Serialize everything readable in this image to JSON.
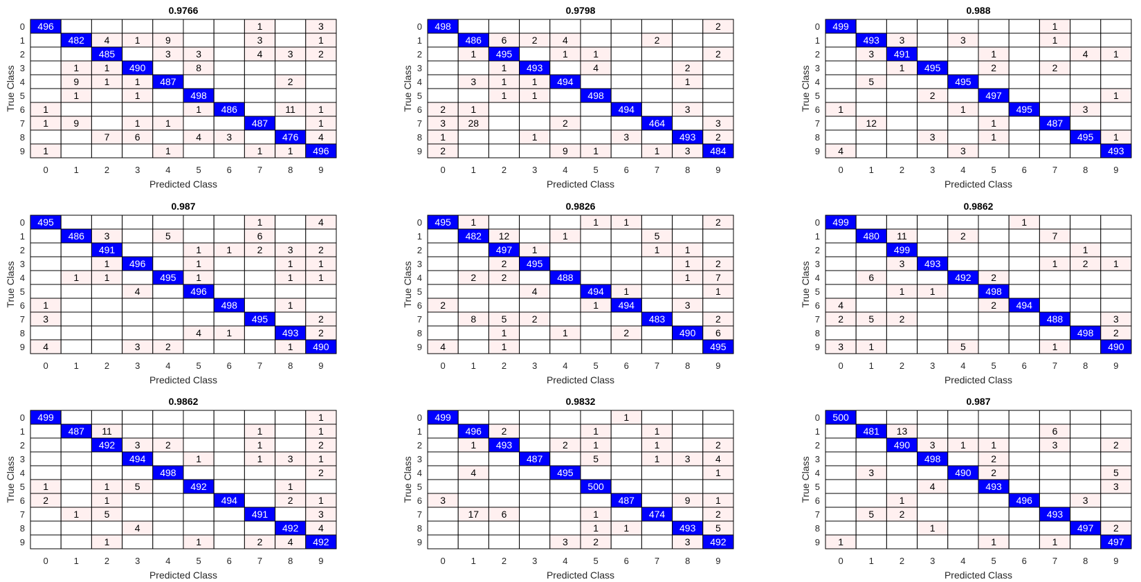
{
  "figure": {
    "background": "#ffffff"
  },
  "style": {
    "diag_color": "#0000ff",
    "offdiag_color": "#fff0f0",
    "grid_color": "#000000",
    "diag_text_color": "#ffffff",
    "offdiag_text_color": "#000000"
  },
  "chart_data": [
    {
      "type": "heatmap",
      "title": "0.9766",
      "xlabel": "Predicted Class",
      "ylabel": "True Class",
      "categories": [
        "0",
        "1",
        "2",
        "3",
        "4",
        "5",
        "6",
        "7",
        "8",
        "9"
      ],
      "matrix": [
        [
          496,
          0,
          0,
          0,
          0,
          0,
          0,
          1,
          0,
          3
        ],
        [
          0,
          482,
          4,
          1,
          9,
          0,
          0,
          3,
          0,
          1
        ],
        [
          0,
          0,
          485,
          0,
          3,
          3,
          0,
          4,
          3,
          2
        ],
        [
          0,
          1,
          1,
          490,
          0,
          8,
          0,
          0,
          0,
          0
        ],
        [
          0,
          9,
          1,
          1,
          487,
          0,
          0,
          0,
          2,
          0
        ],
        [
          0,
          1,
          0,
          1,
          0,
          498,
          0,
          0,
          0,
          0
        ],
        [
          1,
          0,
          0,
          0,
          0,
          1,
          486,
          0,
          11,
          1
        ],
        [
          1,
          9,
          0,
          1,
          1,
          0,
          0,
          487,
          0,
          1
        ],
        [
          0,
          0,
          7,
          6,
          0,
          4,
          3,
          0,
          476,
          4
        ],
        [
          1,
          0,
          0,
          0,
          1,
          0,
          0,
          1,
          1,
          496
        ]
      ]
    },
    {
      "type": "heatmap",
      "title": "0.9798",
      "xlabel": "Predicted Class",
      "ylabel": "True Class",
      "categories": [
        "0",
        "1",
        "2",
        "3",
        "4",
        "5",
        "6",
        "7",
        "8",
        "9"
      ],
      "matrix": [
        [
          498,
          0,
          0,
          0,
          0,
          0,
          0,
          0,
          0,
          2
        ],
        [
          0,
          486,
          6,
          2,
          4,
          0,
          0,
          2,
          0,
          0
        ],
        [
          0,
          1,
          495,
          0,
          1,
          1,
          0,
          0,
          0,
          2
        ],
        [
          0,
          0,
          1,
          493,
          0,
          4,
          0,
          0,
          2,
          0
        ],
        [
          0,
          3,
          1,
          1,
          494,
          0,
          0,
          0,
          1,
          0
        ],
        [
          0,
          0,
          1,
          1,
          0,
          498,
          0,
          0,
          0,
          0
        ],
        [
          2,
          1,
          0,
          0,
          0,
          0,
          494,
          0,
          3,
          0
        ],
        [
          3,
          28,
          0,
          0,
          2,
          0,
          0,
          464,
          0,
          3
        ],
        [
          1,
          0,
          0,
          1,
          0,
          0,
          3,
          0,
          493,
          2
        ],
        [
          2,
          0,
          0,
          0,
          9,
          1,
          0,
          1,
          3,
          484
        ]
      ]
    },
    {
      "type": "heatmap",
      "title": "0.988",
      "xlabel": "Predicted Class",
      "ylabel": "True Class",
      "categories": [
        "0",
        "1",
        "2",
        "3",
        "4",
        "5",
        "6",
        "7",
        "8",
        "9"
      ],
      "matrix": [
        [
          499,
          0,
          0,
          0,
          0,
          0,
          0,
          1,
          0,
          0
        ],
        [
          0,
          493,
          3,
          0,
          3,
          0,
          0,
          1,
          0,
          0
        ],
        [
          0,
          3,
          491,
          0,
          0,
          1,
          0,
          0,
          4,
          1
        ],
        [
          0,
          0,
          1,
          495,
          0,
          2,
          0,
          2,
          0,
          0
        ],
        [
          0,
          5,
          0,
          0,
          495,
          0,
          0,
          0,
          0,
          0
        ],
        [
          0,
          0,
          0,
          2,
          0,
          497,
          0,
          0,
          0,
          1
        ],
        [
          1,
          0,
          0,
          0,
          1,
          0,
          495,
          0,
          3,
          0
        ],
        [
          0,
          12,
          0,
          0,
          0,
          1,
          0,
          487,
          0,
          0
        ],
        [
          0,
          0,
          0,
          3,
          0,
          1,
          0,
          0,
          495,
          1
        ],
        [
          4,
          0,
          0,
          0,
          3,
          0,
          0,
          0,
          0,
          493
        ]
      ]
    },
    {
      "type": "heatmap",
      "title": "0.987",
      "xlabel": "Predicted Class",
      "ylabel": "True Class",
      "categories": [
        "0",
        "1",
        "2",
        "3",
        "4",
        "5",
        "6",
        "7",
        "8",
        "9"
      ],
      "matrix": [
        [
          495,
          0,
          0,
          0,
          0,
          0,
          0,
          1,
          0,
          4
        ],
        [
          0,
          486,
          3,
          0,
          5,
          0,
          0,
          6,
          0,
          0
        ],
        [
          0,
          0,
          491,
          0,
          0,
          1,
          1,
          2,
          3,
          2
        ],
        [
          0,
          0,
          1,
          496,
          0,
          1,
          0,
          0,
          1,
          1
        ],
        [
          0,
          1,
          1,
          0,
          495,
          1,
          0,
          0,
          1,
          1
        ],
        [
          0,
          0,
          0,
          4,
          0,
          496,
          0,
          0,
          0,
          0
        ],
        [
          1,
          0,
          0,
          0,
          0,
          0,
          498,
          0,
          1,
          0
        ],
        [
          3,
          0,
          0,
          0,
          0,
          0,
          0,
          495,
          0,
          2
        ],
        [
          0,
          0,
          0,
          0,
          0,
          4,
          1,
          0,
          493,
          2
        ],
        [
          4,
          0,
          0,
          3,
          2,
          0,
          0,
          0,
          1,
          490
        ]
      ]
    },
    {
      "type": "heatmap",
      "title": "0.9826",
      "xlabel": "Predicted Class",
      "ylabel": "True Class",
      "categories": [
        "0",
        "1",
        "2",
        "3",
        "4",
        "5",
        "6",
        "7",
        "8",
        "9"
      ],
      "matrix": [
        [
          495,
          1,
          0,
          0,
          0,
          1,
          1,
          0,
          0,
          2
        ],
        [
          0,
          482,
          12,
          0,
          1,
          0,
          0,
          5,
          0,
          0
        ],
        [
          0,
          0,
          497,
          1,
          0,
          0,
          0,
          1,
          1,
          0
        ],
        [
          0,
          0,
          2,
          495,
          0,
          0,
          0,
          0,
          1,
          2
        ],
        [
          0,
          2,
          2,
          0,
          488,
          0,
          0,
          0,
          1,
          7
        ],
        [
          0,
          0,
          0,
          4,
          0,
          494,
          1,
          0,
          0,
          1
        ],
        [
          2,
          0,
          0,
          0,
          0,
          1,
          494,
          0,
          3,
          0
        ],
        [
          0,
          8,
          5,
          2,
          0,
          0,
          0,
          483,
          0,
          2
        ],
        [
          0,
          0,
          1,
          0,
          1,
          0,
          2,
          0,
          490,
          6
        ],
        [
          4,
          0,
          1,
          0,
          0,
          0,
          0,
          0,
          0,
          495
        ]
      ]
    },
    {
      "type": "heatmap",
      "title": "0.9862",
      "xlabel": "Predicted Class",
      "ylabel": "True Class",
      "categories": [
        "0",
        "1",
        "2",
        "3",
        "4",
        "5",
        "6",
        "7",
        "8",
        "9"
      ],
      "matrix": [
        [
          499,
          0,
          0,
          0,
          0,
          0,
          1,
          0,
          0,
          0
        ],
        [
          0,
          480,
          11,
          0,
          2,
          0,
          0,
          7,
          0,
          0
        ],
        [
          0,
          0,
          499,
          0,
          0,
          0,
          0,
          0,
          1,
          0
        ],
        [
          0,
          0,
          3,
          493,
          0,
          0,
          0,
          1,
          2,
          1
        ],
        [
          0,
          6,
          0,
          0,
          492,
          2,
          0,
          0,
          0,
          0
        ],
        [
          0,
          0,
          1,
          1,
          0,
          498,
          0,
          0,
          0,
          0
        ],
        [
          4,
          0,
          0,
          0,
          0,
          2,
          494,
          0,
          0,
          0
        ],
        [
          2,
          5,
          2,
          0,
          0,
          0,
          0,
          488,
          0,
          3
        ],
        [
          0,
          0,
          0,
          0,
          0,
          0,
          0,
          0,
          498,
          2
        ],
        [
          3,
          1,
          0,
          0,
          5,
          0,
          0,
          1,
          0,
          490
        ]
      ]
    },
    {
      "type": "heatmap",
      "title": "0.9862",
      "xlabel": "Predicted Class",
      "ylabel": "True Class",
      "categories": [
        "0",
        "1",
        "2",
        "3",
        "4",
        "5",
        "6",
        "7",
        "8",
        "9"
      ],
      "matrix": [
        [
          499,
          0,
          0,
          0,
          0,
          0,
          0,
          0,
          0,
          1
        ],
        [
          0,
          487,
          11,
          0,
          0,
          0,
          0,
          1,
          0,
          1
        ],
        [
          0,
          0,
          492,
          3,
          2,
          0,
          0,
          1,
          0,
          2
        ],
        [
          0,
          0,
          0,
          494,
          0,
          1,
          0,
          1,
          3,
          1
        ],
        [
          0,
          0,
          0,
          0,
          498,
          0,
          0,
          0,
          0,
          2
        ],
        [
          1,
          0,
          1,
          5,
          0,
          492,
          0,
          0,
          1,
          0
        ],
        [
          2,
          0,
          1,
          0,
          0,
          0,
          494,
          0,
          2,
          1
        ],
        [
          0,
          1,
          5,
          0,
          0,
          0,
          0,
          491,
          0,
          3
        ],
        [
          0,
          0,
          0,
          4,
          0,
          0,
          0,
          0,
          492,
          4
        ],
        [
          0,
          0,
          1,
          0,
          0,
          1,
          0,
          2,
          4,
          492
        ]
      ]
    },
    {
      "type": "heatmap",
      "title": "0.9832",
      "xlabel": "Predicted Class",
      "ylabel": "True Class",
      "categories": [
        "0",
        "1",
        "2",
        "3",
        "4",
        "5",
        "6",
        "7",
        "8",
        "9"
      ],
      "matrix": [
        [
          499,
          0,
          0,
          0,
          0,
          0,
          1,
          0,
          0,
          0
        ],
        [
          0,
          496,
          2,
          0,
          0,
          1,
          0,
          1,
          0,
          0
        ],
        [
          0,
          1,
          493,
          0,
          2,
          1,
          0,
          1,
          0,
          2
        ],
        [
          0,
          0,
          0,
          487,
          0,
          5,
          0,
          1,
          3,
          4
        ],
        [
          0,
          4,
          0,
          0,
          495,
          0,
          0,
          0,
          0,
          1
        ],
        [
          0,
          0,
          0,
          0,
          0,
          500,
          0,
          0,
          0,
          0
        ],
        [
          3,
          0,
          0,
          0,
          0,
          0,
          487,
          0,
          9,
          1
        ],
        [
          0,
          17,
          6,
          0,
          0,
          1,
          0,
          474,
          0,
          2
        ],
        [
          0,
          0,
          0,
          0,
          0,
          1,
          1,
          0,
          493,
          5
        ],
        [
          0,
          0,
          0,
          0,
          3,
          2,
          0,
          0,
          3,
          492
        ]
      ]
    },
    {
      "type": "heatmap",
      "title": "0.987",
      "xlabel": "Predicted Class",
      "ylabel": "True Class",
      "categories": [
        "0",
        "1",
        "2",
        "3",
        "4",
        "5",
        "6",
        "7",
        "8",
        "9"
      ],
      "matrix": [
        [
          500,
          0,
          0,
          0,
          0,
          0,
          0,
          0,
          0,
          0
        ],
        [
          0,
          481,
          13,
          0,
          0,
          0,
          0,
          6,
          0,
          0
        ],
        [
          0,
          0,
          490,
          3,
          1,
          1,
          0,
          3,
          0,
          2
        ],
        [
          0,
          0,
          0,
          498,
          0,
          2,
          0,
          0,
          0,
          0
        ],
        [
          0,
          3,
          0,
          0,
          490,
          2,
          0,
          0,
          0,
          5
        ],
        [
          0,
          0,
          0,
          4,
          0,
          493,
          0,
          0,
          0,
          3
        ],
        [
          0,
          0,
          1,
          0,
          0,
          0,
          496,
          0,
          3,
          0
        ],
        [
          0,
          5,
          2,
          0,
          0,
          0,
          0,
          493,
          0,
          0
        ],
        [
          0,
          0,
          0,
          1,
          0,
          0,
          0,
          0,
          497,
          2
        ],
        [
          1,
          0,
          0,
          0,
          0,
          1,
          0,
          1,
          0,
          497
        ]
      ]
    }
  ]
}
